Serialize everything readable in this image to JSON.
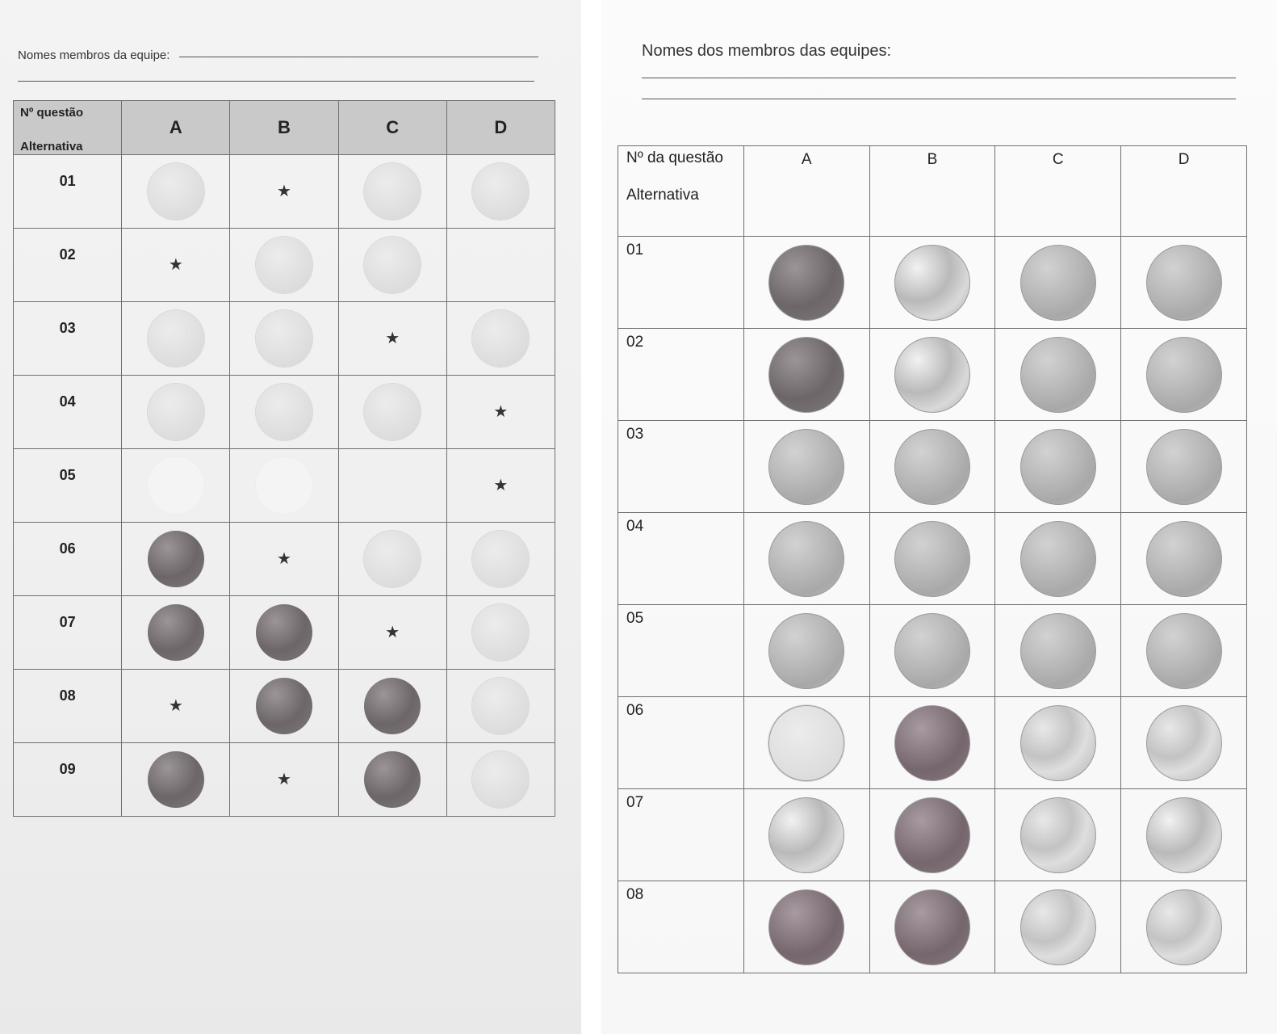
{
  "left_sheet": {
    "names_label": "Nomes membros da equipe:",
    "header": {
      "q_line1": "Nº questão",
      "q_line2": "Alternativa",
      "cols": [
        "A",
        "B",
        "C",
        "D"
      ]
    },
    "rows": [
      {
        "num": "01",
        "cells": [
          "light",
          "star",
          "light",
          "light"
        ]
      },
      {
        "num": "02",
        "cells": [
          "star",
          "light",
          "light",
          "empty"
        ]
      },
      {
        "num": "03",
        "cells": [
          "light",
          "light",
          "star",
          "light"
        ]
      },
      {
        "num": "04",
        "cells": [
          "light",
          "light",
          "light",
          "star"
        ]
      },
      {
        "num": "05",
        "cells": [
          "faint",
          "faint",
          "empty",
          "star"
        ]
      },
      {
        "num": "06",
        "cells": [
          "dark",
          "star",
          "light",
          "light"
        ]
      },
      {
        "num": "07",
        "cells": [
          "dark",
          "dark",
          "star",
          "light"
        ]
      },
      {
        "num": "08",
        "cells": [
          "star",
          "dark",
          "dark",
          "light"
        ]
      },
      {
        "num": "09",
        "cells": [
          "dark",
          "star",
          "dark",
          "light"
        ]
      }
    ]
  },
  "right_sheet": {
    "names_label": "Nomes dos membros das equipes:",
    "header": {
      "q_line1": "Nº da questão",
      "q_line2": "Alternativa",
      "cols": [
        "A",
        "B",
        "C",
        "D"
      ]
    },
    "rows": [
      {
        "num": "01",
        "cells": [
          "dark",
          "silver",
          "medium",
          "medium"
        ]
      },
      {
        "num": "02",
        "cells": [
          "dark",
          "silver",
          "medium",
          "medium"
        ]
      },
      {
        "num": "03",
        "cells": [
          "medium",
          "medium",
          "medium",
          "medium"
        ]
      },
      {
        "num": "04",
        "cells": [
          "medium",
          "medium",
          "medium",
          "medium"
        ]
      },
      {
        "num": "05",
        "cells": [
          "medium",
          "medium",
          "medium",
          "medium"
        ]
      },
      {
        "num": "06",
        "cells": [
          "light",
          "mauve",
          "sparkle",
          "sparkle"
        ]
      },
      {
        "num": "07",
        "cells": [
          "silver",
          "mauve",
          "sparkle",
          "silver"
        ]
      },
      {
        "num": "08",
        "cells": [
          "mauve",
          "mauve",
          "sparkle",
          "sparkle"
        ]
      }
    ]
  },
  "colors": {
    "header_bg_left": "#c9c9c9",
    "border": "#6f6f6f",
    "sticker_dark": "#6c6668",
    "sticker_light": "#dcdcdc"
  }
}
